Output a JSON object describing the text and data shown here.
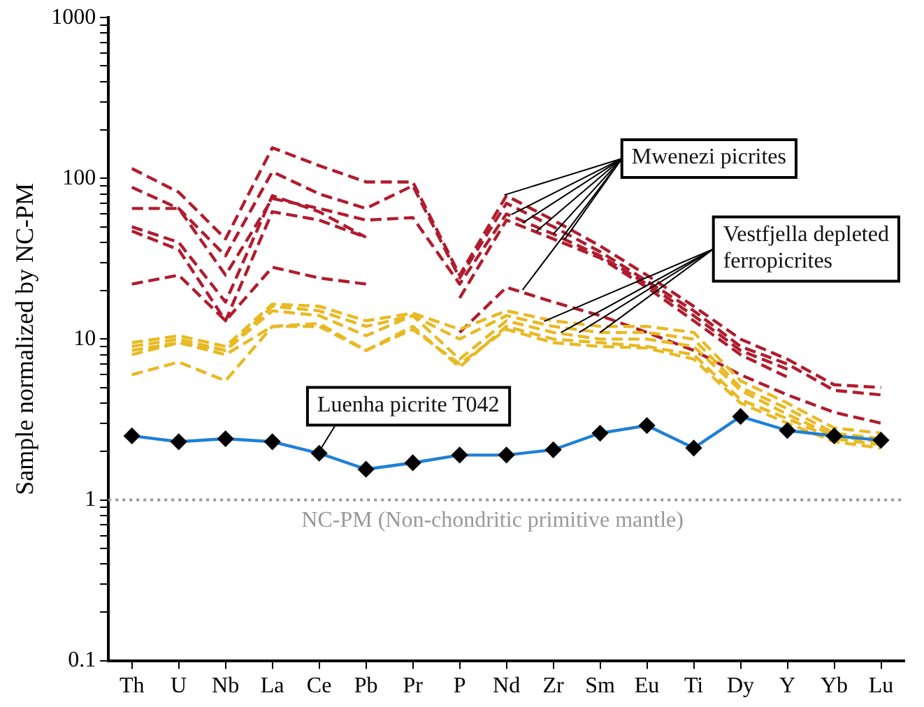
{
  "chart_data": {
    "type": "line",
    "ylabel": "Sample normalized by NC-PM",
    "categories": [
      "Th",
      "U",
      "Nb",
      "La",
      "Ce",
      "Pb",
      "Pr",
      "P",
      "Nd",
      "Zr",
      "Sm",
      "Eu",
      "Ti",
      "Dy",
      "Y",
      "Yb",
      "Lu"
    ],
    "log": true,
    "ylim": [
      0.1,
      1000
    ],
    "yticks": [
      0.1,
      {
        "value": 0.2,
        "label": null
      },
      {
        "value": 0.3,
        "label": null
      },
      {
        "value": 0.4,
        "label": null
      },
      {
        "value": 0.5,
        "label": null
      },
      {
        "value": 0.6,
        "label": null
      },
      {
        "value": 0.7,
        "label": null
      },
      {
        "value": 0.8,
        "label": null
      },
      {
        "value": 0.9,
        "label": null
      },
      1,
      {
        "value": 2,
        "label": null
      },
      {
        "value": 3,
        "label": null
      },
      {
        "value": 4,
        "label": null
      },
      {
        "value": 5,
        "label": null
      },
      {
        "value": 6,
        "label": null
      },
      {
        "value": 7,
        "label": null
      },
      {
        "value": 8,
        "label": null
      },
      {
        "value": 9,
        "label": null
      },
      10,
      {
        "value": 20,
        "label": null
      },
      {
        "value": 30,
        "label": null
      },
      {
        "value": 40,
        "label": null
      },
      {
        "value": 50,
        "label": null
      },
      {
        "value": 60,
        "label": null
      },
      {
        "value": 70,
        "label": null
      },
      {
        "value": 80,
        "label": null
      },
      {
        "value": 90,
        "label": null
      },
      100,
      {
        "value": 200,
        "label": null
      },
      {
        "value": 300,
        "label": null
      },
      {
        "value": 400,
        "label": null
      },
      {
        "value": 500,
        "label": null
      },
      {
        "value": 600,
        "label": null
      },
      {
        "value": 700,
        "label": null
      },
      {
        "value": 800,
        "label": null
      },
      {
        "value": 900,
        "label": null
      },
      1000
    ],
    "grid": false,
    "legend": false,
    "series": [
      {
        "color": "#b01c2e",
        "line_style": "dashed",
        "marker": "none",
        "values": [
          115,
          82,
          42,
          155,
          120,
          95,
          95,
          25,
          78,
          55,
          38,
          25,
          16,
          10,
          7.5,
          5.2,
          5.0
        ]
      },
      {
        "color": "#b01c2e",
        "line_style": "dashed",
        "marker": "none",
        "values": [
          88,
          65,
          33,
          110,
          80,
          65,
          90,
          24,
          70,
          50,
          35,
          23,
          15,
          9,
          7,
          4.8,
          4.5
        ]
      },
      {
        "color": "#b01c2e",
        "line_style": "dashed",
        "marker": "none",
        "values": [
          65,
          65,
          25,
          75,
          65,
          55,
          57,
          22,
          60,
          45,
          33,
          22,
          14,
          8.5,
          6.5,
          null,
          null
        ]
      },
      {
        "color": "#b01c2e",
        "line_style": "dashed",
        "marker": "none",
        "values": [
          50,
          40,
          17,
          78,
          62,
          43,
          null,
          null,
          null,
          null,
          null,
          null,
          null,
          null,
          null,
          null,
          null
        ]
      },
      {
        "color": "#b01c2e",
        "line_style": "dashed",
        "marker": "none",
        "values": [
          47,
          36,
          13,
          62,
          55,
          43,
          null,
          null,
          null,
          null,
          null,
          null,
          null,
          null,
          null,
          null,
          null
        ]
      },
      {
        "color": "#b01c2e",
        "line_style": "dashed",
        "marker": "none",
        "values": [
          22,
          25,
          13,
          28,
          24,
          22,
          null,
          null,
          null,
          null,
          null,
          null,
          null,
          null,
          null,
          null,
          null
        ]
      },
      {
        "color": "#b01c2e",
        "line_style": "dashed",
        "marker": "none",
        "values": [
          null,
          null,
          null,
          null,
          null,
          null,
          null,
          18,
          55,
          42,
          32,
          21,
          13,
          8,
          5.8,
          null,
          null
        ]
      },
      {
        "color": "#b01c2e",
        "line_style": "dashed",
        "marker": "none",
        "values": [
          null,
          null,
          null,
          null,
          null,
          null,
          null,
          11,
          21,
          17,
          14,
          11,
          8.5,
          6,
          4.5,
          3.5,
          3
        ]
      },
      {
        "color": "#e8b923",
        "line_style": "dashed",
        "marker": "none",
        "values": [
          9.5,
          10.5,
          9,
          16.5,
          16,
          13,
          14.5,
          11.5,
          15,
          13,
          12,
          12,
          11,
          5.5,
          4,
          2.8,
          2.6
        ]
      },
      {
        "color": "#e8b923",
        "line_style": "dashed",
        "marker": "none",
        "values": [
          9,
          10,
          8.5,
          16,
          15,
          12,
          14,
          10,
          14,
          12,
          11,
          11,
          10,
          5,
          3.7,
          2.6,
          2.4
        ]
      },
      {
        "color": "#e8b923",
        "line_style": "dashed",
        "marker": "none",
        "values": [
          8.5,
          9.5,
          8.5,
          15,
          14,
          10.5,
          14,
          7.5,
          13,
          11,
          10,
          10,
          9,
          4.8,
          3.4,
          2.5,
          2.3
        ]
      },
      {
        "color": "#e8b923",
        "line_style": "dashed",
        "marker": "none",
        "values": [
          8,
          9.5,
          8,
          12,
          12.5,
          8.5,
          12,
          6.7,
          12,
          10,
          9.5,
          9,
          8,
          4.2,
          3.2,
          2.4,
          2.2
        ]
      },
      {
        "color": "#e8b923",
        "line_style": "dashed",
        "marker": "none",
        "values": [
          6,
          7.2,
          5.5,
          12,
          12,
          8.5,
          11.5,
          7,
          11.5,
          9.5,
          9,
          8.8,
          7.5,
          4,
          3,
          2.3,
          2.1
        ]
      },
      {
        "color": "#1f7fd6",
        "line_style": "solid",
        "marker": "diamond",
        "values": [
          2.5,
          2.3,
          2.4,
          2.3,
          1.95,
          1.55,
          1.7,
          1.9,
          1.9,
          2.05,
          2.6,
          2.9,
          2.1,
          3.3,
          2.7,
          2.5,
          2.35
        ]
      }
    ],
    "ref_lines": [
      {
        "axis": "y",
        "value": 1,
        "label": "NC-PM (Non-chondritic primitive mantle)",
        "color": "#999999",
        "line_style": "dotted"
      }
    ],
    "annotations": [
      {
        "text": "Mwenezi picrites",
        "x": "Zr",
        "y": 45
      },
      {
        "text": "Vestfjella depleted ferropicrites",
        "x": "Sm",
        "y": 11
      },
      {
        "text": "Luenha picrite T042",
        "x": "Ce",
        "y": 2
      }
    ]
  }
}
